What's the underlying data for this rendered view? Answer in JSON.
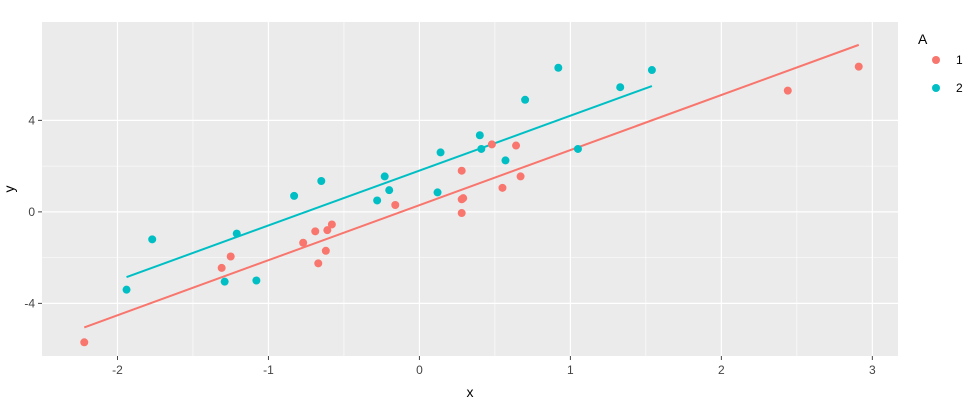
{
  "chart_data": {
    "type": "scatter",
    "title": "",
    "xlabel": "x",
    "ylabel": "y",
    "xlim": [
      -2.5,
      3.17
    ],
    "ylim": [
      -6.3,
      8.3
    ],
    "x_ticks": [
      -2,
      -1,
      0,
      1,
      2,
      3
    ],
    "x_tick_labels": [
      "-2",
      "-1",
      "0",
      "1",
      "2",
      "3"
    ],
    "y_ticks": [
      -4,
      0,
      4
    ],
    "y_tick_labels": [
      "-4",
      "0",
      "4"
    ],
    "grid": true,
    "background": "#ebebeb",
    "legend": {
      "title": "A",
      "position": "right",
      "entries": [
        "1",
        "2"
      ]
    },
    "series": [
      {
        "name": "1",
        "color": "#f8766d",
        "points": [
          {
            "x": -2.22,
            "y": -5.7
          },
          {
            "x": -1.31,
            "y": -2.45
          },
          {
            "x": -1.25,
            "y": -1.95
          },
          {
            "x": -0.77,
            "y": -1.35
          },
          {
            "x": -0.69,
            "y": -0.85
          },
          {
            "x": -0.67,
            "y": -2.25
          },
          {
            "x": -0.62,
            "y": -1.7
          },
          {
            "x": -0.61,
            "y": -0.8
          },
          {
            "x": -0.58,
            "y": -0.55
          },
          {
            "x": -0.16,
            "y": 0.3
          },
          {
            "x": 0.28,
            "y": -0.05
          },
          {
            "x": 0.28,
            "y": 0.55
          },
          {
            "x": 0.29,
            "y": 0.6
          },
          {
            "x": 0.28,
            "y": 1.8
          },
          {
            "x": 0.48,
            "y": 2.95
          },
          {
            "x": 0.55,
            "y": 1.05
          },
          {
            "x": 0.64,
            "y": 2.9
          },
          {
            "x": 0.67,
            "y": 1.55
          },
          {
            "x": 2.44,
            "y": 5.3
          },
          {
            "x": 2.91,
            "y": 6.35
          }
        ],
        "fit_line": {
          "x": [
            -2.22,
            2.91
          ],
          "y": [
            -5.05,
            7.3
          ]
        }
      },
      {
        "name": "2",
        "color": "#00bfc4",
        "points": [
          {
            "x": -1.94,
            "y": -3.4
          },
          {
            "x": -1.77,
            "y": -1.2
          },
          {
            "x": -1.29,
            "y": -3.05
          },
          {
            "x": -1.21,
            "y": -0.95
          },
          {
            "x": -1.08,
            "y": -3.0
          },
          {
            "x": -0.83,
            "y": 0.7
          },
          {
            "x": -0.65,
            "y": 1.35
          },
          {
            "x": -0.28,
            "y": 0.5
          },
          {
            "x": -0.23,
            "y": 1.55
          },
          {
            "x": -0.2,
            "y": 0.95
          },
          {
            "x": 0.12,
            "y": 0.85
          },
          {
            "x": 0.14,
            "y": 2.6
          },
          {
            "x": 0.4,
            "y": 3.35
          },
          {
            "x": 0.41,
            "y": 2.75
          },
          {
            "x": 0.57,
            "y": 2.25
          },
          {
            "x": 0.7,
            "y": 4.9
          },
          {
            "x": 0.92,
            "y": 6.3
          },
          {
            "x": 1.05,
            "y": 2.75
          },
          {
            "x": 1.33,
            "y": 5.45
          },
          {
            "x": 1.54,
            "y": 6.2
          }
        ],
        "fit_line": {
          "x": [
            -1.94,
            1.54
          ],
          "y": [
            -2.85,
            5.5
          ]
        }
      }
    ]
  }
}
